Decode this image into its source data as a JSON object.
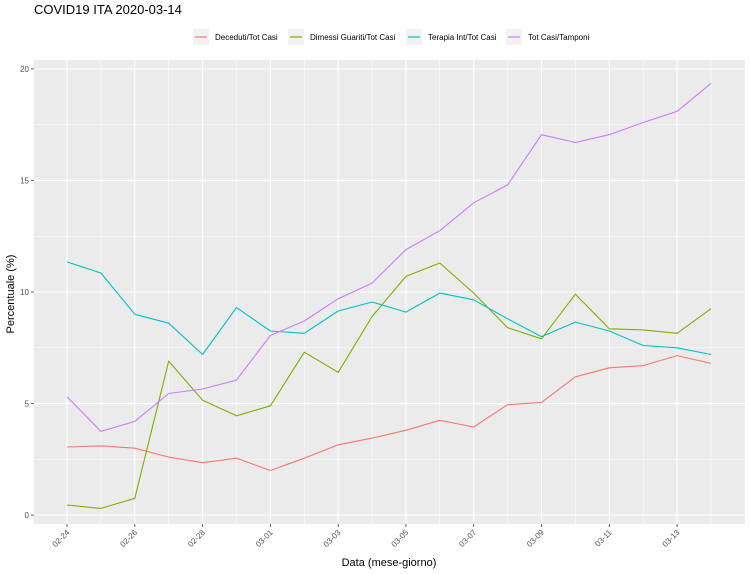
{
  "chart_data": {
    "type": "line",
    "title": "COVID19 ITA 2020-03-14",
    "xlabel": "Data (mese-giorno)",
    "ylabel": "Percentuale (%)",
    "x": [
      "02-24",
      "02-25",
      "02-26",
      "02-27",
      "02-28",
      "02-29",
      "03-01",
      "03-02",
      "03-03",
      "03-04",
      "03-05",
      "03-06",
      "03-07",
      "03-08",
      "03-09",
      "03-10",
      "03-11",
      "03-12",
      "03-13",
      "03-14"
    ],
    "x_ticks": [
      "02-24",
      "02-26",
      "02-28",
      "03-01",
      "03-03",
      "03-05",
      "03-07",
      "03-09",
      "03-11",
      "03-13"
    ],
    "ylim": [
      -0.4,
      20.4
    ],
    "y_ticks": [
      0,
      5,
      10,
      15,
      20
    ],
    "grid": true,
    "legend_position": "top",
    "series": [
      {
        "name": "Deceduti/Tot Casi",
        "color": "#F8766D",
        "values": [
          3.05,
          3.1,
          3.0,
          2.6,
          2.35,
          2.55,
          2.0,
          2.55,
          3.15,
          3.45,
          3.8,
          4.25,
          3.95,
          4.95,
          5.05,
          6.2,
          6.6,
          6.7,
          7.15,
          6.8
        ]
      },
      {
        "name": "Dimessi Guariti/Tot Casi",
        "color": "#7CAE00",
        "values": [
          0.45,
          0.3,
          0.75,
          6.9,
          5.15,
          4.45,
          4.9,
          7.3,
          6.4,
          8.9,
          10.7,
          11.3,
          9.95,
          8.4,
          7.9,
          9.9,
          8.35,
          8.3,
          8.15,
          9.25
        ]
      },
      {
        "name": "Terapia Int/Tot Casi",
        "color": "#00BFC4",
        "values": [
          11.35,
          10.85,
          9.0,
          8.6,
          7.2,
          9.3,
          8.25,
          8.15,
          9.15,
          9.55,
          9.1,
          9.95,
          9.65,
          8.8,
          8.0,
          8.65,
          8.25,
          7.6,
          7.5,
          7.2
        ]
      },
      {
        "name": "Tot Casi/Tamponi",
        "color": "#C77CFF",
        "values": [
          5.3,
          3.75,
          4.2,
          5.45,
          5.65,
          6.05,
          8.05,
          8.7,
          9.7,
          10.4,
          11.9,
          12.75,
          14.0,
          14.8,
          17.05,
          16.7,
          17.05,
          17.6,
          18.1,
          19.35
        ]
      }
    ]
  }
}
